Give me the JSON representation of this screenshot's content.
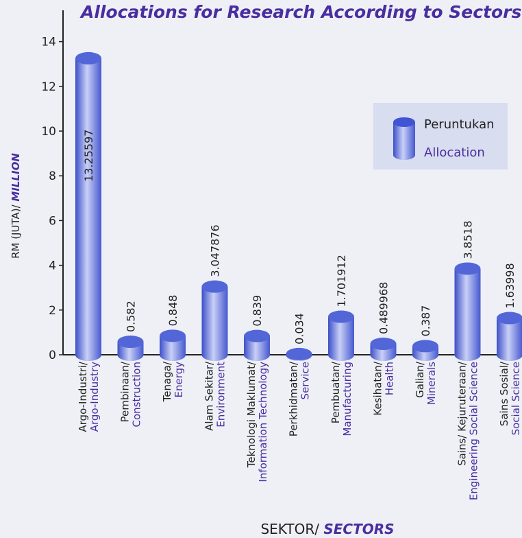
{
  "chart_data": {
    "type": "bar",
    "title": "Allocations for Research According to Sectors",
    "y_label": "RM (JUTA)/ ",
    "y_label_en": "MILLION",
    "x_label": "SEKTOR/ ",
    "x_label_en": "SECTORS",
    "categories": [
      "Argo-Industri/",
      "Pembinaan/",
      "Tenaga/",
      "Alam Sekitar/",
      "Teknologi Maklumat/",
      "Perkhidmatan/",
      "Pembuatan/",
      "Kesihatan/",
      "Galian/",
      "Sains/ Kejuruteraan/",
      "Sains Sosial/"
    ],
    "categories_en": [
      "Argo-Industry",
      "Construction",
      "Energy",
      "Environment",
      "Information Technology",
      "Service",
      "Manufacturing",
      "Health",
      "Minerals",
      "Engineering Social Science",
      "Social Science"
    ],
    "series": [
      {
        "name": "Peruntukan",
        "name_en": "Allocation",
        "color": "#5266d8",
        "values": [
          13.25597,
          0.582,
          0.848,
          3.047876,
          0.839,
          0.034,
          1.701912,
          0.489968,
          0.387,
          3.8518,
          1.63998
        ]
      }
    ],
    "ylim": [
      0,
      15.4
    ],
    "yticks": [
      0,
      2,
      4,
      6,
      8,
      10,
      12,
      14
    ],
    "legend": "upper right"
  }
}
